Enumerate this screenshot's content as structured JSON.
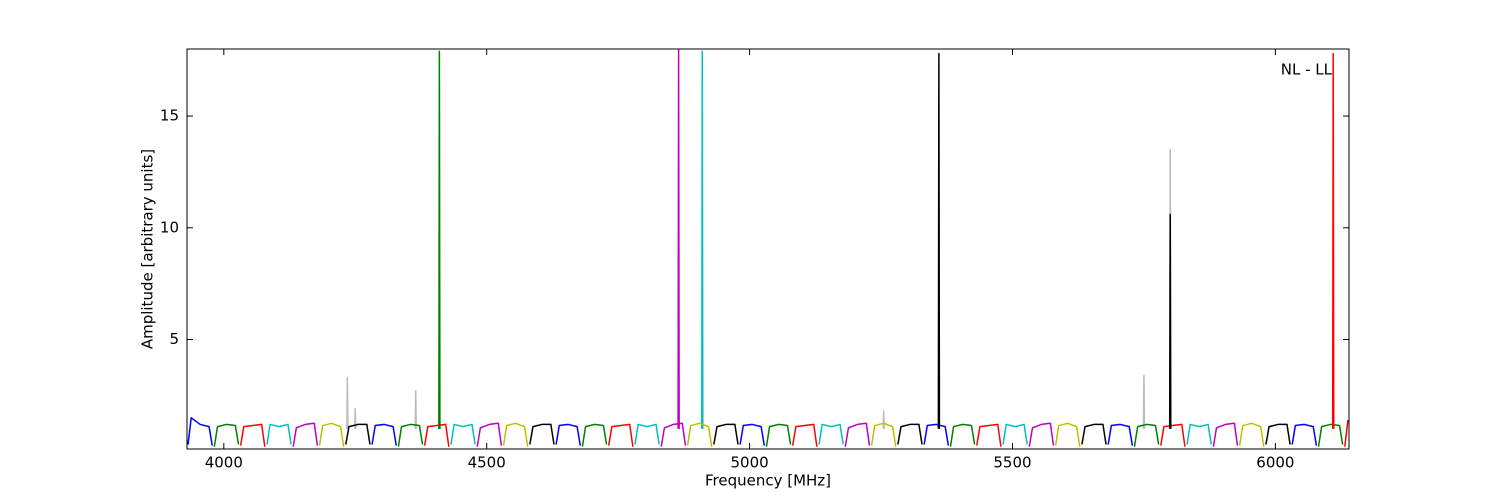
{
  "chart_data": {
    "type": "line",
    "annotation": "NL - LL",
    "xlabel": "Frequency [MHz]",
    "ylabel": "Amplitude [arbitrary units]",
    "xlim": [
      3930,
      6140
    ],
    "ylim": [
      0.1,
      18
    ],
    "xticks": [
      4000,
      4500,
      5000,
      5500,
      6000
    ],
    "yticks": [
      5,
      10,
      15
    ],
    "series": [
      {
        "color": "#bbbbbb",
        "x": [
          4234,
          4235,
          4236,
          4237,
          4249,
          4250,
          4251,
          4252,
          4364,
          4365,
          4366,
          4367,
          5254,
          5255,
          5256,
          5257,
          5749,
          5750,
          5751,
          5752,
          5799,
          5800,
          5801
        ],
        "values": [
          1.0,
          3.3,
          1.0,
          null,
          1.0,
          1.9,
          1.0,
          null,
          1.0,
          2.7,
          1.0,
          null,
          1.0,
          1.8,
          1.0,
          null,
          1.0,
          3.4,
          1.0,
          null,
          1.0,
          13.5,
          1.0
        ]
      },
      {
        "color": "#0000ff",
        "x": [
          3932,
          3938,
          3955,
          3972,
          3978,
          3979,
          4282,
          4288,
          4305,
          4322,
          4328,
          4329,
          4632,
          4638,
          4655,
          4672,
          4678,
          4679,
          4982,
          4988,
          5005,
          5022,
          5028,
          5029,
          5332,
          5338,
          5355,
          5372,
          5378,
          5379,
          5682,
          5688,
          5705,
          5722,
          5728,
          5729,
          6032,
          6038,
          6055,
          6072,
          6078
        ],
        "values": [
          0.3,
          1.5,
          1.2,
          1.1,
          0.25,
          null,
          0.3,
          1.15,
          1.2,
          1.1,
          0.25,
          null,
          0.3,
          1.15,
          1.2,
          1.1,
          0.25,
          null,
          0.3,
          1.15,
          1.2,
          1.1,
          0.25,
          null,
          0.3,
          1.15,
          1.2,
          1.1,
          0.25,
          null,
          0.3,
          1.15,
          1.2,
          1.1,
          0.25,
          null,
          0.3,
          1.15,
          1.2,
          1.1,
          0.25
        ]
      },
      {
        "color": "#008000",
        "x": [
          3982,
          3988,
          4005,
          4022,
          4028,
          4029,
          4332,
          4338,
          4355,
          4372,
          4378,
          4379,
          4682,
          4688,
          4705,
          4722,
          4728,
          4729,
          5032,
          5038,
          5055,
          5072,
          5078,
          5079,
          5382,
          5388,
          5405,
          5422,
          5428,
          5429,
          5732,
          5738,
          5755,
          5772,
          5778,
          5779,
          6082,
          6088,
          6105,
          6122,
          6128,
          6129,
          4409,
          4410,
          4411
        ],
        "values": [
          0.2,
          1.1,
          1.2,
          1.15,
          0.3,
          null,
          0.2,
          1.1,
          1.2,
          1.15,
          0.3,
          null,
          0.2,
          1.1,
          1.2,
          1.15,
          0.3,
          null,
          0.2,
          1.1,
          1.2,
          1.15,
          0.3,
          null,
          0.2,
          1.1,
          1.2,
          1.15,
          0.3,
          null,
          0.2,
          1.1,
          1.2,
          1.15,
          0.3,
          null,
          0.2,
          1.1,
          1.2,
          1.15,
          0.3,
          null,
          1.0,
          17.9,
          1.0
        ]
      },
      {
        "color": "#ff0000",
        "x": [
          4032,
          4038,
          4055,
          4072,
          4078,
          4079,
          4382,
          4388,
          4405,
          4422,
          4428,
          4429,
          4732,
          4738,
          4755,
          4772,
          4778,
          4779,
          5082,
          5088,
          5105,
          5122,
          5128,
          5129,
          5432,
          5438,
          5455,
          5472,
          5478,
          5479,
          5782,
          5788,
          5805,
          5822,
          5828,
          5829,
          6132,
          6138,
          6139,
          6109,
          6110,
          6111
        ],
        "values": [
          0.25,
          1.1,
          1.15,
          1.2,
          0.2,
          null,
          0.25,
          1.1,
          1.15,
          1.2,
          0.2,
          null,
          0.25,
          1.1,
          1.15,
          1.2,
          0.2,
          null,
          0.25,
          1.1,
          1.15,
          1.2,
          0.2,
          null,
          0.25,
          1.1,
          1.15,
          1.2,
          0.2,
          null,
          0.25,
          1.1,
          1.15,
          1.2,
          0.2,
          null,
          0.2,
          1.4,
          null,
          1.0,
          17.8,
          1.0
        ]
      },
      {
        "color": "#00bfbf",
        "x": [
          4082,
          4088,
          4105,
          4122,
          4128,
          4129,
          4432,
          4438,
          4455,
          4472,
          4478,
          4479,
          4782,
          4788,
          4805,
          4822,
          4828,
          4829,
          5132,
          5138,
          5155,
          5172,
          5178,
          5179,
          5482,
          5488,
          5505,
          5522,
          5528,
          5529,
          5832,
          5838,
          5855,
          5872,
          5878,
          5879,
          4909,
          4910,
          4911
        ],
        "values": [
          0.3,
          1.2,
          1.1,
          1.2,
          0.3,
          null,
          0.3,
          1.2,
          1.1,
          1.2,
          0.3,
          null,
          0.3,
          1.2,
          1.1,
          1.2,
          0.3,
          null,
          0.3,
          1.2,
          1.1,
          1.2,
          0.3,
          null,
          0.3,
          1.2,
          1.1,
          1.2,
          0.3,
          null,
          0.3,
          1.2,
          1.1,
          1.2,
          0.3,
          null,
          1.0,
          17.9,
          1.0
        ]
      },
      {
        "color": "#bf00bf",
        "x": [
          4132,
          4138,
          4155,
          4172,
          4178,
          4179,
          4482,
          4488,
          4505,
          4522,
          4528,
          4529,
          4832,
          4838,
          4855,
          4872,
          4878,
          4879,
          5182,
          5188,
          5205,
          5222,
          5228,
          5229,
          5532,
          5538,
          5555,
          5572,
          5578,
          5579,
          5882,
          5888,
          5905,
          5922,
          5928,
          5929,
          4864,
          4865,
          4866
        ],
        "values": [
          0.2,
          1.05,
          1.2,
          1.25,
          0.25,
          null,
          0.2,
          1.05,
          1.2,
          1.25,
          0.25,
          null,
          0.2,
          1.05,
          1.2,
          1.25,
          0.25,
          null,
          0.2,
          1.05,
          1.2,
          1.25,
          0.25,
          null,
          0.2,
          1.05,
          1.2,
          1.25,
          0.25,
          null,
          0.2,
          1.05,
          1.2,
          1.25,
          0.25,
          null,
          1.0,
          18,
          1.0
        ]
      },
      {
        "color": "#bfbf00",
        "x": [
          4182,
          4188,
          4205,
          4222,
          4228,
          4229,
          4532,
          4538,
          4555,
          4572,
          4578,
          4579,
          4882,
          4888,
          4905,
          4922,
          4928,
          4929,
          5232,
          5238,
          5255,
          5272,
          5278,
          5279,
          5582,
          5588,
          5605,
          5622,
          5628,
          5629,
          5932,
          5938,
          5955,
          5972,
          5978
        ],
        "values": [
          0.25,
          1.15,
          1.25,
          1.1,
          0.2,
          null,
          0.25,
          1.15,
          1.25,
          1.1,
          0.2,
          null,
          0.25,
          1.15,
          1.25,
          1.1,
          0.2,
          null,
          0.25,
          1.15,
          1.25,
          1.1,
          0.2,
          null,
          0.25,
          1.15,
          1.25,
          1.1,
          0.2,
          null,
          0.25,
          1.15,
          1.25,
          1.1,
          0.2
        ]
      },
      {
        "color": "#000000",
        "x": [
          4232,
          4238,
          4255,
          4272,
          4278,
          4279,
          4582,
          4588,
          4605,
          4622,
          4628,
          4629,
          4932,
          4938,
          4955,
          4972,
          4978,
          4979,
          5282,
          5288,
          5305,
          5322,
          5328,
          5329,
          5632,
          5638,
          5655,
          5672,
          5678,
          5679,
          5982,
          5988,
          6005,
          6022,
          6028,
          6029,
          5359,
          5360,
          5361,
          5362,
          5799,
          5800,
          5801
        ],
        "values": [
          0.3,
          1.1,
          1.2,
          1.2,
          0.3,
          null,
          0.3,
          1.1,
          1.2,
          1.2,
          0.3,
          null,
          0.3,
          1.1,
          1.2,
          1.2,
          0.3,
          null,
          0.3,
          1.1,
          1.2,
          1.2,
          0.3,
          null,
          0.3,
          1.1,
          1.2,
          1.2,
          0.3,
          null,
          0.3,
          1.1,
          1.2,
          1.2,
          0.3,
          null,
          1.0,
          17.8,
          1.0,
          null,
          1.0,
          10.6,
          1.0
        ]
      }
    ]
  }
}
